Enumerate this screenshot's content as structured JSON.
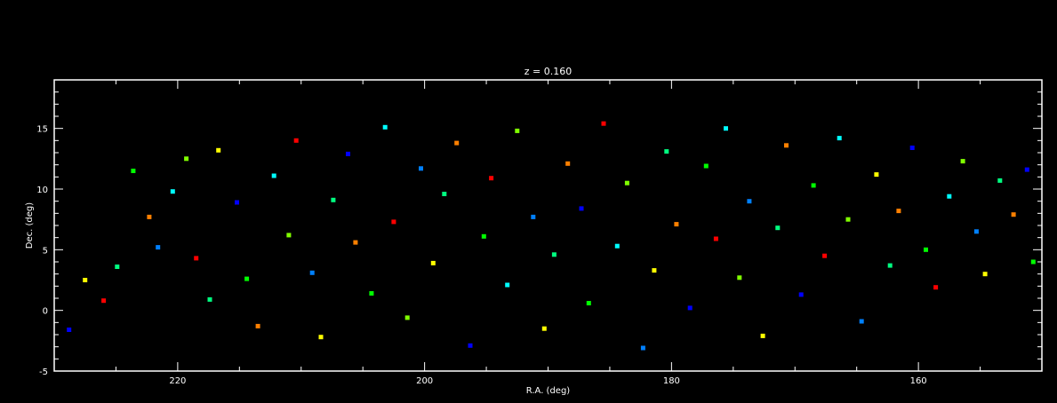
{
  "chart_data": {
    "type": "scatter",
    "title": "z = 0.160",
    "xlabel": "R.A. (deg)",
    "ylabel": "Dec. (deg)",
    "xlim": [
      230,
      150
    ],
    "ylim": [
      -5,
      19
    ],
    "x_ticks": [
      220,
      200,
      180,
      160
    ],
    "x_tick_labels": [
      "220",
      "200",
      "180",
      "160"
    ],
    "y_ticks": [
      -5,
      0,
      5,
      10,
      15
    ],
    "y_tick_labels": [
      "-5",
      "0",
      "5",
      "10",
      "15"
    ],
    "grid": false,
    "legend": false,
    "marker": "square",
    "palette": [
      "#0000ff",
      "#0080ff",
      "#00ffff",
      "#00ff80",
      "#00ff00",
      "#80ff00",
      "#ffff00",
      "#ff8000",
      "#ff0000",
      "#4b0082"
    ],
    "background": "#000000",
    "foreground": "#ffffff",
    "points": [
      [
        228.8,
        -1.6,
        0
      ],
      [
        227.5,
        2.5,
        6
      ],
      [
        226.0,
        0.8,
        8
      ],
      [
        224.9,
        3.6,
        3
      ],
      [
        223.6,
        11.5,
        4
      ],
      [
        222.3,
        7.7,
        7
      ],
      [
        221.6,
        5.2,
        1
      ],
      [
        220.4,
        9.8,
        2
      ],
      [
        219.3,
        12.5,
        5
      ],
      [
        218.5,
        4.3,
        8
      ],
      [
        217.4,
        0.9,
        3
      ],
      [
        216.7,
        13.2,
        6
      ],
      [
        215.2,
        8.9,
        0
      ],
      [
        214.4,
        2.6,
        4
      ],
      [
        213.5,
        -1.3,
        7
      ],
      [
        212.2,
        11.1,
        2
      ],
      [
        211.0,
        6.2,
        5
      ],
      [
        210.4,
        14.0,
        8
      ],
      [
        209.1,
        3.1,
        1
      ],
      [
        208.4,
        -2.2,
        6
      ],
      [
        207.4,
        9.1,
        3
      ],
      [
        206.2,
        12.9,
        0
      ],
      [
        205.6,
        5.6,
        7
      ],
      [
        204.3,
        1.4,
        4
      ],
      [
        203.2,
        15.1,
        2
      ],
      [
        202.5,
        7.3,
        8
      ],
      [
        201.4,
        -0.6,
        5
      ],
      [
        200.3,
        11.7,
        1
      ],
      [
        199.3,
        3.9,
        6
      ],
      [
        198.4,
        9.6,
        3
      ],
      [
        197.4,
        13.8,
        7
      ],
      [
        196.3,
        -2.9,
        0
      ],
      [
        195.2,
        6.1,
        4
      ],
      [
        194.6,
        10.9,
        8
      ],
      [
        193.3,
        2.1,
        2
      ],
      [
        192.5,
        14.8,
        5
      ],
      [
        191.2,
        7.7,
        1
      ],
      [
        190.3,
        -1.5,
        6
      ],
      [
        189.5,
        4.6,
        3
      ],
      [
        188.4,
        12.1,
        7
      ],
      [
        187.3,
        8.4,
        0
      ],
      [
        186.7,
        0.6,
        4
      ],
      [
        185.5,
        15.4,
        8
      ],
      [
        184.4,
        5.3,
        2
      ],
      [
        183.6,
        10.5,
        5
      ],
      [
        182.3,
        -3.1,
        1
      ],
      [
        181.4,
        3.3,
        6
      ],
      [
        180.4,
        13.1,
        3
      ],
      [
        179.6,
        7.1,
        7
      ],
      [
        178.5,
        0.2,
        0
      ],
      [
        177.2,
        11.9,
        4
      ],
      [
        176.4,
        5.9,
        8
      ],
      [
        175.6,
        15.0,
        2
      ],
      [
        174.5,
        2.7,
        5
      ],
      [
        173.7,
        9.0,
        1
      ],
      [
        172.6,
        -2.1,
        6
      ],
      [
        171.4,
        6.8,
        3
      ],
      [
        170.7,
        13.6,
        7
      ],
      [
        169.5,
        1.3,
        0
      ],
      [
        168.5,
        10.3,
        4
      ],
      [
        167.6,
        4.5,
        8
      ],
      [
        166.4,
        14.2,
        2
      ],
      [
        165.7,
        7.5,
        5
      ],
      [
        164.6,
        -0.9,
        1
      ],
      [
        163.4,
        11.2,
        6
      ],
      [
        162.3,
        3.7,
        3
      ],
      [
        161.6,
        8.2,
        7
      ],
      [
        160.5,
        13.4,
        0
      ],
      [
        159.4,
        5.0,
        4
      ],
      [
        158.6,
        1.9,
        8
      ],
      [
        157.5,
        9.4,
        2
      ],
      [
        156.4,
        12.3,
        5
      ],
      [
        155.3,
        6.5,
        1
      ],
      [
        154.6,
        3.0,
        6
      ],
      [
        153.4,
        10.7,
        3
      ],
      [
        152.3,
        7.9,
        7
      ],
      [
        151.2,
        11.6,
        0
      ],
      [
        150.7,
        4.0,
        4
      ]
    ]
  }
}
